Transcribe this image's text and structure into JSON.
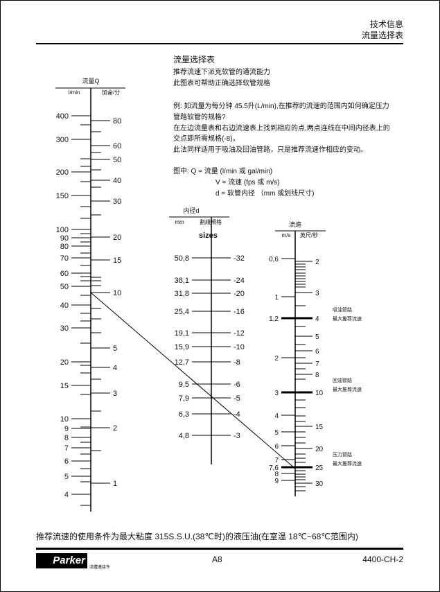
{
  "header": {
    "line1": "技术信息",
    "line2": "流量选择表"
  },
  "intro": {
    "title": "流量选择表",
    "lines": [
      "推荐流速下派克软管的通流能力",
      "此图表可帮助正确选择软管规格"
    ],
    "example": [
      "例: 如流量为每分钟 45.5升(L/min),在推荐的流速的范围内如何确定压力",
      "管路软管的规格?",
      "在左边流量表和右边流速表上找到相应的点,两点连线在中间内径表上的",
      "交点即所需规格(-8)。",
      "此法同样适用于吸油及回油管路，只是推荐流速作相应的变动。"
    ],
    "legend": [
      "图中: Q = 流量 (l/min 或 gal/min)",
      "V = 流速 (fps 或 m/s)",
      "d = 软管内径 （mm 或划线尺寸)"
    ]
  },
  "flow_scale": {
    "title": "流量Q",
    "left_unit": "l/min",
    "right_unit": "加侖/分",
    "left_labels": [
      "400",
      "300",
      "200",
      "150",
      "100",
      "90",
      "80",
      "70",
      "60",
      "50",
      "40",
      "30",
      "20",
      "15",
      "10",
      "9",
      "8",
      "7",
      "6",
      "5",
      "4"
    ],
    "right_labels": [
      "80",
      "60",
      "50",
      "40",
      "30",
      "20",
      "15",
      "10",
      "5",
      "4",
      "3",
      "2",
      "1"
    ]
  },
  "diameter_scale": {
    "title": "内径d",
    "left_unit": "mm",
    "right_unit": "劃綫規格",
    "sizes_label": "sizes",
    "left_labels": [
      "50,8",
      "38,1",
      "31,8",
      "25,4",
      "19,1",
      "15,9",
      "12,7",
      "9,5",
      "7,9",
      "6,3",
      "4,8"
    ],
    "right_labels": [
      "-32",
      "-24",
      "-20",
      "-16",
      "-12",
      "-10",
      "-8",
      "-6",
      "-5",
      "-4",
      "-3"
    ]
  },
  "velocity_scale": {
    "title": "流速",
    "left_unit": "m/s",
    "right_unit": "英尺/秒",
    "left_labels": [
      "0,6",
      "1",
      "1,2",
      "2",
      "3",
      "4",
      "5",
      "6",
      "7",
      "7,6",
      "8",
      "9"
    ],
    "right_labels": [
      "2",
      "3",
      "4",
      "5",
      "6",
      "7",
      "8",
      "10",
      "15",
      "20",
      "25",
      "30"
    ],
    "notes": [
      {
        "line1": "吸油管路",
        "line2": "最大推荐流速"
      },
      {
        "line1": "回油管路",
        "line2": "最大推荐流速"
      },
      {
        "line1": "压力管路",
        "line2": "最大推荐流速"
      }
    ]
  },
  "example_line": {
    "flow_lpm": 45.5,
    "size": "-8"
  },
  "footnote": "推荐流速的使用条件为最大粘度 315S.S.U.(38℃时)的液压油(在室温 18℃~68℃范围内)",
  "footer": {
    "logo": "Parker",
    "logo_caption": "流體連接件",
    "page": "A8",
    "doc_code": "4400-CH-2"
  }
}
